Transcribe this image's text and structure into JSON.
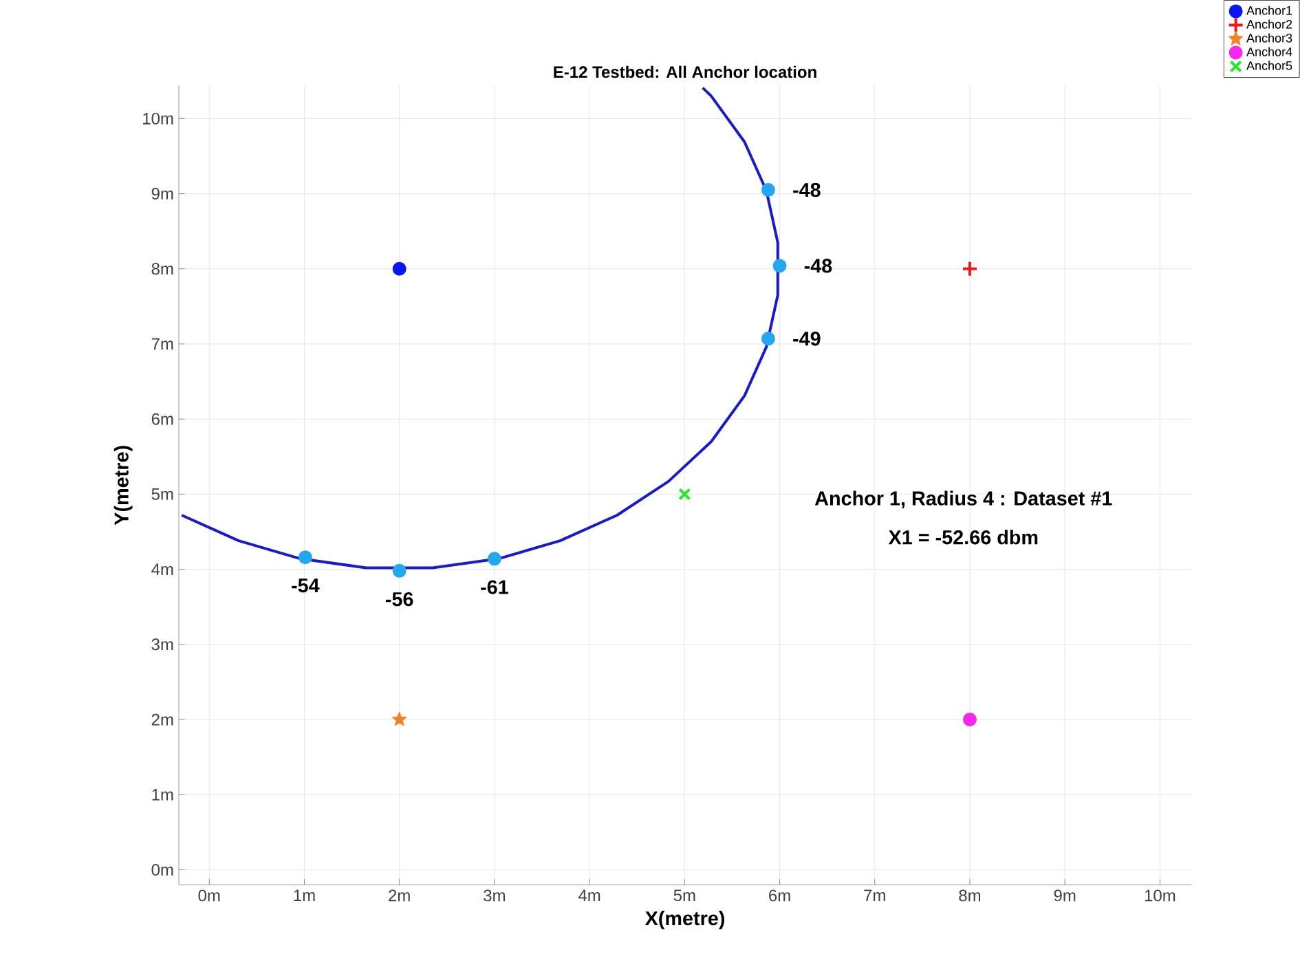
{
  "chart_data": {
    "type": "scatter",
    "title": "E-12 Testbed: All Anchor location",
    "xlabel": "X(metre)",
    "ylabel": "Y(metre)",
    "xlim": [
      -0.32,
      10.33
    ],
    "ylim": [
      -0.2,
      10.44
    ],
    "xticks": [
      {
        "value": 0,
        "label": "0m"
      },
      {
        "value": 1,
        "label": "1m"
      },
      {
        "value": 2,
        "label": "2m"
      },
      {
        "value": 3,
        "label": "3m"
      },
      {
        "value": 4,
        "label": "4m"
      },
      {
        "value": 5,
        "label": "5m"
      },
      {
        "value": 6,
        "label": "6m"
      },
      {
        "value": 7,
        "label": "7m"
      },
      {
        "value": 8,
        "label": "8m"
      },
      {
        "value": 9,
        "label": "9m"
      },
      {
        "value": 10,
        "label": "10m"
      }
    ],
    "yticks": [
      {
        "value": 0,
        "label": "0m"
      },
      {
        "value": 1,
        "label": "1m"
      },
      {
        "value": 2,
        "label": "2m"
      },
      {
        "value": 3,
        "label": "3m"
      },
      {
        "value": 4,
        "label": "4m"
      },
      {
        "value": 5,
        "label": "5m"
      },
      {
        "value": 6,
        "label": "6m"
      },
      {
        "value": 7,
        "label": "7m"
      },
      {
        "value": 8,
        "label": "8m"
      },
      {
        "value": 9,
        "label": "9m"
      },
      {
        "value": 10,
        "label": "10m"
      }
    ],
    "grid": true,
    "legend": "top right",
    "series": [
      {
        "type": "line",
        "color": "#1a1acc",
        "marker": "none",
        "x": [
          -0.29,
          0.31,
          0.96,
          1.65,
          2.35,
          3.04,
          3.69,
          4.29,
          4.83,
          5.28,
          5.63,
          5.86,
          5.98,
          5.98,
          5.86,
          5.63,
          5.28,
          5.19
        ],
        "values": [
          4.72,
          4.38,
          4.14,
          4.02,
          4.02,
          4.14,
          4.38,
          4.72,
          5.17,
          5.7,
          6.31,
          6.96,
          7.65,
          8.35,
          9.04,
          9.69,
          10.3,
          10.41
        ]
      },
      {
        "color": "#22a7f0",
        "marker": "circle",
        "x": [
          5.88,
          6.0,
          5.88,
          1.01,
          2.0,
          3.0
        ],
        "values": [
          9.05,
          8.04,
          7.07,
          4.16,
          3.98,
          4.14
        ]
      },
      {
        "name": "Anchor1",
        "color": "#0a14f5",
        "marker": "circle",
        "x": [
          2
        ],
        "values": [
          8
        ]
      },
      {
        "name": "Anchor2",
        "color": "#f51414",
        "marker": "plus",
        "x": [
          8
        ],
        "values": [
          8
        ]
      },
      {
        "name": "Anchor3",
        "color": "#f08228",
        "marker": "star",
        "x": [
          2
        ],
        "values": [
          2
        ]
      },
      {
        "name": "Anchor4",
        "color": "#f528f0",
        "marker": "circle",
        "x": [
          8
        ],
        "values": [
          2
        ]
      },
      {
        "name": "Anchor5",
        "color": "#28e628",
        "marker": "cross",
        "x": [
          5
        ],
        "values": [
          5
        ]
      }
    ],
    "annotations": [
      "Anchor 1, Radius 4 : Dataset #1",
      "X1 =  -52.66 dbm",
      {
        "text": "-48",
        "x": 5.88,
        "y": 9.05
      },
      {
        "text": "-48",
        "x": 6.0,
        "y": 8.04
      },
      {
        "text": "-49",
        "x": 5.88,
        "y": 7.07
      },
      {
        "text": "-54",
        "x": 1.01,
        "y": 4.16
      },
      {
        "text": "-56",
        "x": 2.0,
        "y": 3.98
      },
      {
        "text": "-61",
        "x": 3.0,
        "y": 4.14
      }
    ]
  }
}
